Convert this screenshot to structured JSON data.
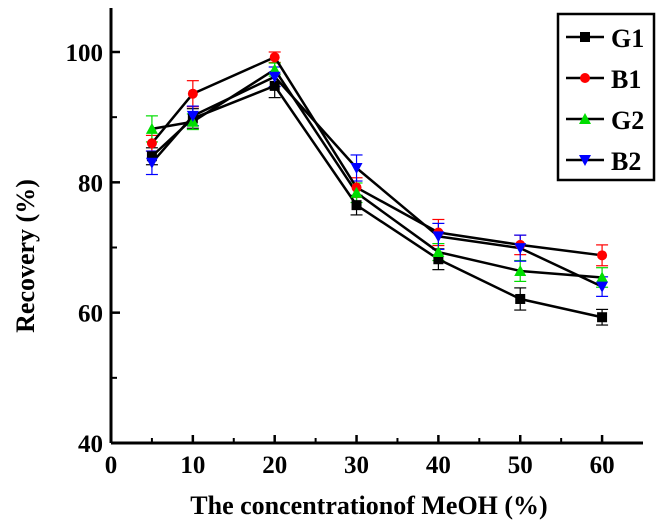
{
  "chart_data": {
    "type": "line",
    "xlabel": "The concentrationof MeOH (%)",
    "ylabel": "Recovery  (%)",
    "xlim": [
      0,
      65
    ],
    "ylim": [
      40,
      100
    ],
    "x_ticks": [
      0,
      10,
      20,
      30,
      40,
      50,
      60
    ],
    "y_ticks": [
      40,
      60,
      80,
      100
    ],
    "x": [
      5,
      10,
      20,
      30,
      40,
      50,
      60
    ],
    "legend_position": "top-right",
    "series": [
      {
        "name": "G1",
        "color": "#000000",
        "marker": "square",
        "values": [
          84.0,
          89.8,
          94.8,
          76.5,
          68.2,
          62.1,
          59.3
        ],
        "errors": [
          1.3,
          1.5,
          1.8,
          1.5,
          1.6,
          1.7,
          1.2
        ]
      },
      {
        "name": "B1",
        "color": "#ff0000",
        "marker": "circle",
        "values": [
          86.0,
          93.6,
          99.2,
          79.2,
          72.3,
          70.4,
          68.8
        ],
        "errors": [
          1.2,
          2.0,
          0.8,
          1.5,
          2.0,
          1.5,
          1.6
        ]
      },
      {
        "name": "G2",
        "color": "#00dd00",
        "marker": "triangle-up",
        "values": [
          88.2,
          89.3,
          97.3,
          78.4,
          69.3,
          66.4,
          65.4
        ],
        "errors": [
          2.0,
          1.2,
          1.0,
          1.5,
          1.3,
          1.6,
          1.5
        ]
      },
      {
        "name": "B2",
        "color": "#0000ff",
        "marker": "triangle-down",
        "values": [
          83.0,
          90.2,
          96.2,
          82.2,
          71.7,
          69.9,
          64.0
        ],
        "errors": [
          1.8,
          1.5,
          1.5,
          2.0,
          2.0,
          2.0,
          1.5
        ]
      }
    ]
  }
}
